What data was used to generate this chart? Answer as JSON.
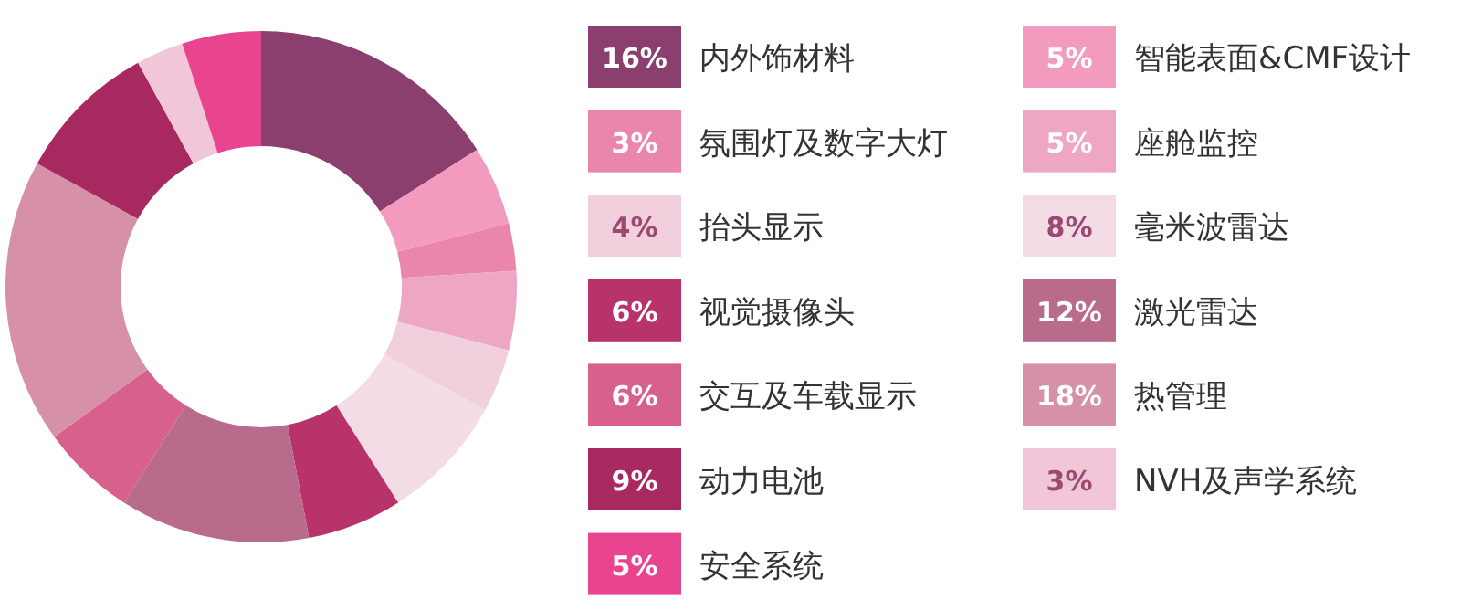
{
  "chart_data": {
    "type": "donut",
    "categories": [
      "内外饰材料",
      "智能表面&CMF设计",
      "氛围灯及数字大灯",
      "座舱监控",
      "抬头显示",
      "毫米波雷达",
      "视觉摄像头",
      "激光雷达",
      "交互及车载显示",
      "热管理",
      "动力电池",
      "NVH及声学系统",
      "安全系统"
    ],
    "values": [
      16,
      5,
      3,
      5,
      4,
      8,
      6,
      12,
      6,
      18,
      9,
      3,
      5
    ],
    "colors": [
      "#8b3f6e",
      "#f29bbf",
      "#ea86ad",
      "#eda6c4",
      "#f2cfdd",
      "#f3dce6",
      "#b8336a",
      "#b86b8a",
      "#d7608c",
      "#d691a9",
      "#a8295f",
      "#f0c6d8",
      "#e8448f"
    ],
    "value_labels": [
      "16%",
      "5%",
      "3%",
      "5%",
      "4%",
      "8%",
      "6%",
      "12%",
      "6%",
      "18%",
      "9%",
      "3%",
      "5%"
    ],
    "legend": "right"
  }
}
